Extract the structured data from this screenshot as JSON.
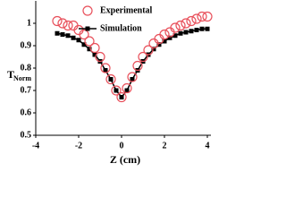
{
  "chart_data": {
    "type": "scatter-line",
    "x_label": "Z (cm)",
    "y_label": "T",
    "y_label_subscript": "Norm",
    "x": [
      -3,
      -2.75,
      -2.5,
      -2.25,
      -2,
      -1.75,
      -1.5,
      -1.25,
      -1,
      -0.75,
      -0.5,
      -0.25,
      0,
      0.25,
      0.5,
      0.75,
      1,
      1.25,
      1.5,
      1.75,
      2,
      2.25,
      2.5,
      2.75,
      3,
      3.25,
      3.5,
      3.75,
      4
    ],
    "series": [
      {
        "name": "Experimental",
        "color": "#e8505b",
        "marker": "circle",
        "values": [
          1.01,
          1.0,
          0.99,
          0.99,
          0.97,
          0.95,
          0.92,
          0.89,
          0.85,
          0.8,
          0.75,
          0.7,
          0.67,
          0.71,
          0.76,
          0.81,
          0.85,
          0.88,
          0.91,
          0.93,
          0.95,
          0.96,
          0.98,
          0.99,
          1.0,
          1.01,
          1.02,
          1.03,
          1.03
        ]
      },
      {
        "name": "Simulation",
        "color": "#000000",
        "marker": "square",
        "values": [
          0.955,
          0.95,
          0.945,
          0.935,
          0.925,
          0.905,
          0.885,
          0.86,
          0.83,
          0.79,
          0.75,
          0.7,
          0.67,
          0.7,
          0.75,
          0.79,
          0.83,
          0.86,
          0.885,
          0.905,
          0.92,
          0.935,
          0.945,
          0.955,
          0.96,
          0.965,
          0.97,
          0.975,
          0.975
        ]
      }
    ],
    "xlim": [
      -4,
      4
    ],
    "xticks": [
      -4,
      -2,
      0,
      2,
      4
    ],
    "ylim": [
      0.5,
      1.1
    ],
    "yticks": [
      0.5,
      0.6,
      0.7,
      0.8,
      0.9,
      1
    ],
    "legend": "upper center"
  }
}
